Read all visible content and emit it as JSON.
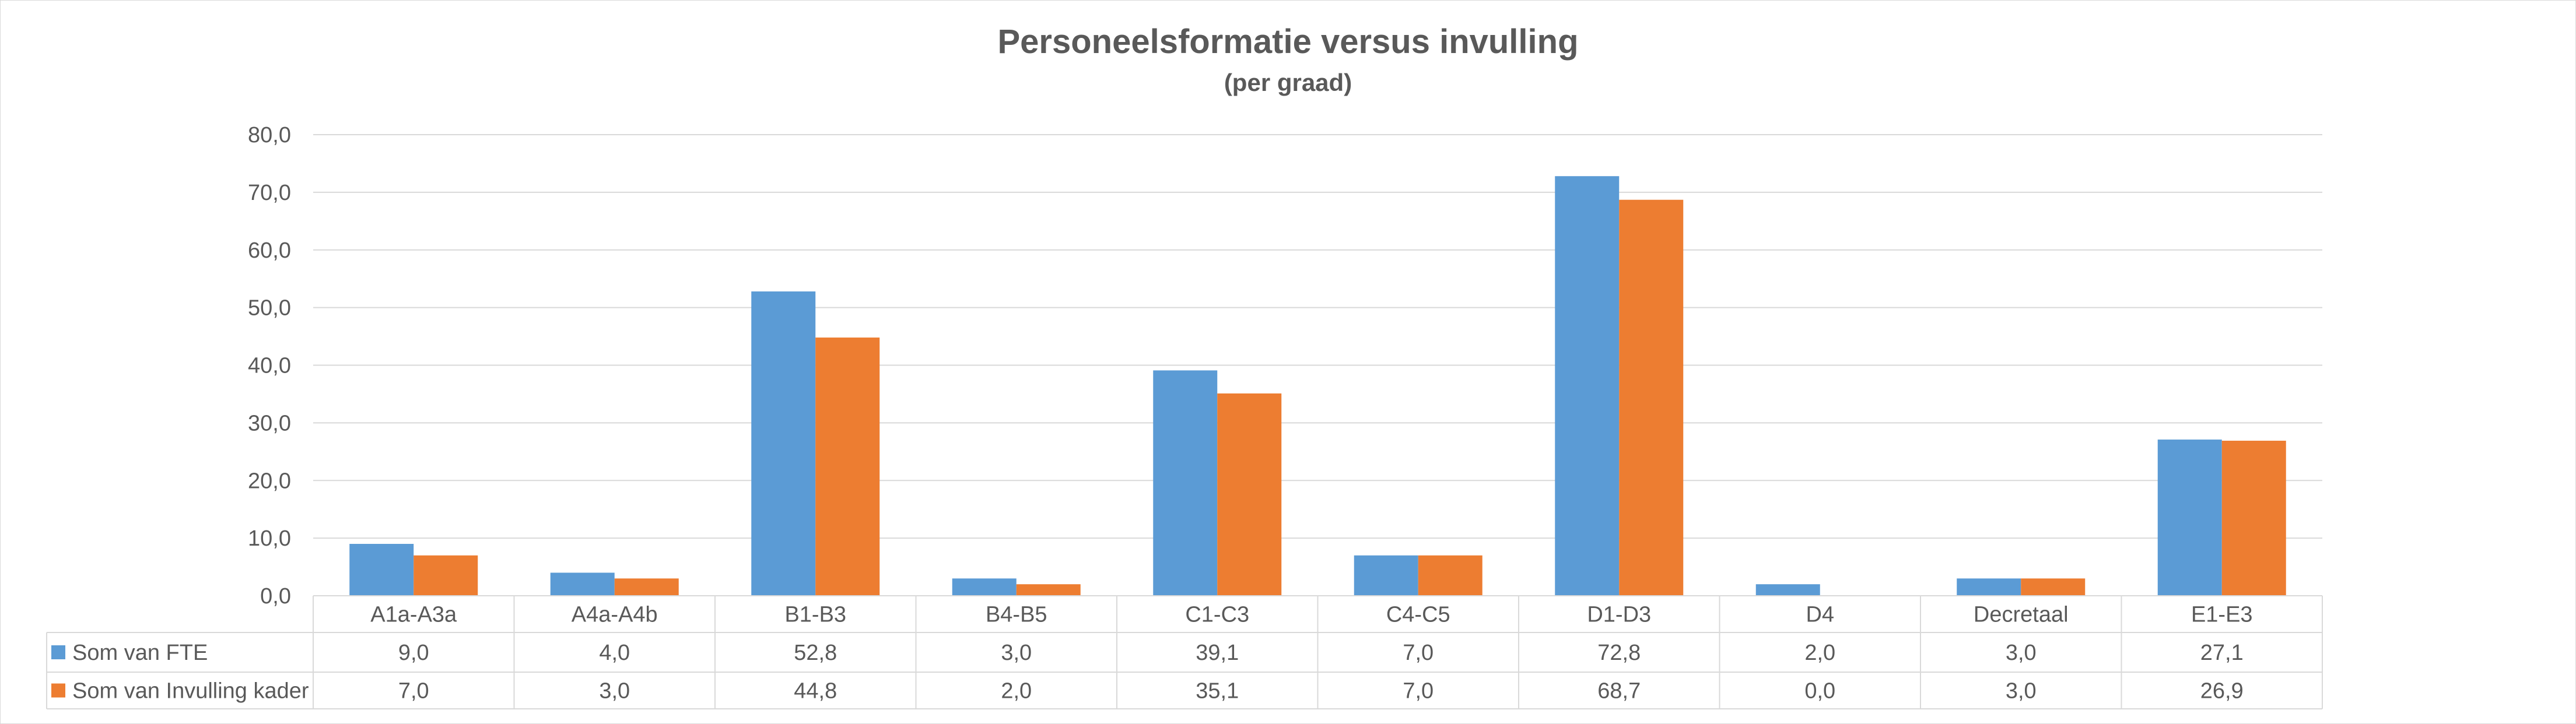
{
  "chart_data": {
    "type": "bar",
    "title": "Personeelsformatie versus invulling",
    "subtitle": "(per graad)",
    "xlabel": "",
    "ylabel": "",
    "ylim": [
      0,
      80
    ],
    "yticks": [
      "0,0",
      "10,0",
      "20,0",
      "30,0",
      "40,0",
      "50,0",
      "60,0",
      "70,0",
      "80,0"
    ],
    "grid": true,
    "legend": "data-table",
    "categories": [
      "A1a-A3a",
      "A4a-A4b",
      "B1-B3",
      "B4-B5",
      "C1-C3",
      "C4-C5",
      "D1-D3",
      "D4",
      "Decretaal",
      "E1-E3"
    ],
    "series": [
      {
        "name": "Som van FTE",
        "color": "#5b9bd5",
        "values": [
          9.0,
          4.0,
          52.8,
          3.0,
          39.1,
          7.0,
          72.8,
          2.0,
          3.0,
          27.1
        ],
        "labels": [
          "9,0",
          "4,0",
          "52,8",
          "3,0",
          "39,1",
          "7,0",
          "72,8",
          "2,0",
          "3,0",
          "27,1"
        ]
      },
      {
        "name": "Som van Invulling kader",
        "color": "#ed7d31",
        "values": [
          7.0,
          3.0,
          44.8,
          2.0,
          35.1,
          7.0,
          68.7,
          0.0,
          3.0,
          26.9
        ],
        "labels": [
          "7,0",
          "3,0",
          "44,8",
          "2,0",
          "35,1",
          "7,0",
          "68,7",
          "0,0",
          "3,0",
          "26,9"
        ]
      }
    ]
  }
}
